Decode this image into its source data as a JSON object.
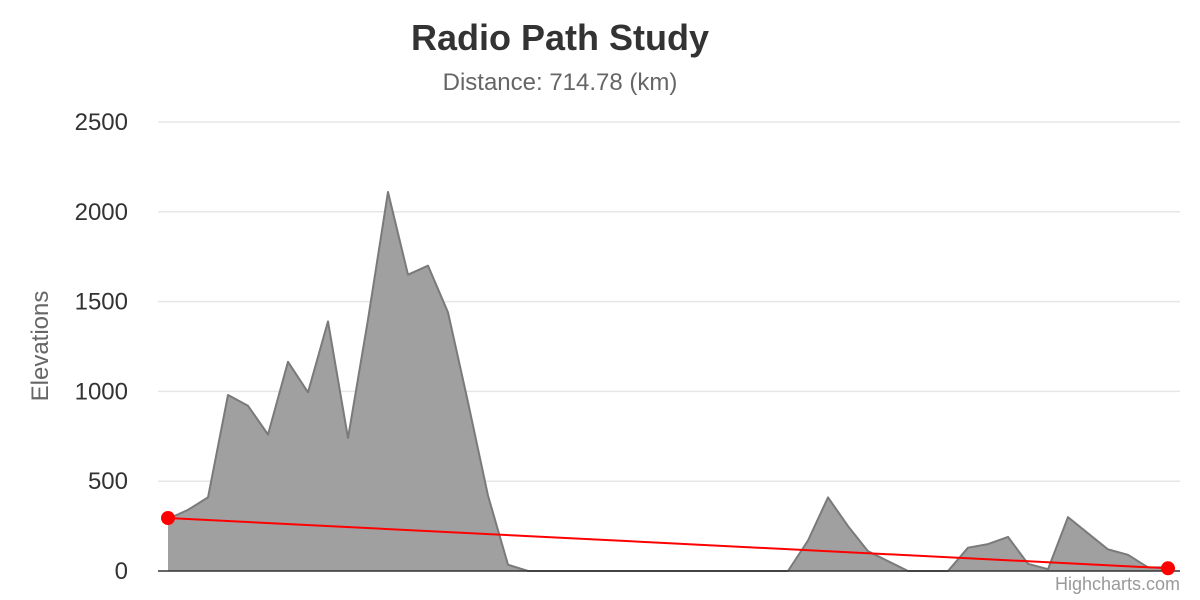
{
  "credits": "Highcharts.com",
  "chart_data": {
    "type": "area",
    "title": "Radio Path Study",
    "subtitle": "Distance: 714.78 (km)",
    "ylabel": "Elevations",
    "xlabel": "",
    "ylim": [
      0,
      2500
    ],
    "yticks": [
      0,
      500,
      1000,
      1500,
      2000,
      2500
    ],
    "xlim": [
      0,
      50
    ],
    "grid": true,
    "legend": "none",
    "colors": {
      "terrain_fill": "#a0a0a0",
      "terrain_line": "#7a7a7a",
      "path_line": "#ff0000",
      "endpoint": "#ff0000",
      "grid": "#e6e6e6",
      "axis": "#333333"
    },
    "series": [
      {
        "type": "area",
        "x": [
          0,
          1,
          2,
          3,
          4,
          5,
          6,
          7,
          8,
          9,
          10,
          11,
          12,
          13,
          14,
          15,
          16,
          17,
          18,
          19,
          20,
          21,
          22,
          23,
          24,
          25,
          26,
          27,
          28,
          29,
          30,
          31,
          32,
          33,
          34,
          35,
          36,
          37,
          38,
          39,
          40,
          41,
          42,
          43,
          44,
          45,
          46,
          47,
          48,
          49,
          50
        ],
        "values": [
          290,
          340,
          410,
          980,
          920,
          760,
          1165,
          995,
          1390,
          740,
          1400,
          2110,
          1650,
          1700,
          1440,
          940,
          420,
          35,
          0,
          0,
          0,
          0,
          0,
          0,
          0,
          0,
          0,
          0,
          0,
          0,
          0,
          0,
          170,
          410,
          250,
          110,
          55,
          0,
          0,
          0,
          130,
          150,
          190,
          40,
          10,
          300,
          210,
          120,
          90,
          20,
          20
        ]
      },
      {
        "type": "line",
        "x": [
          0,
          50
        ],
        "values": [
          295,
          15
        ]
      }
    ]
  }
}
